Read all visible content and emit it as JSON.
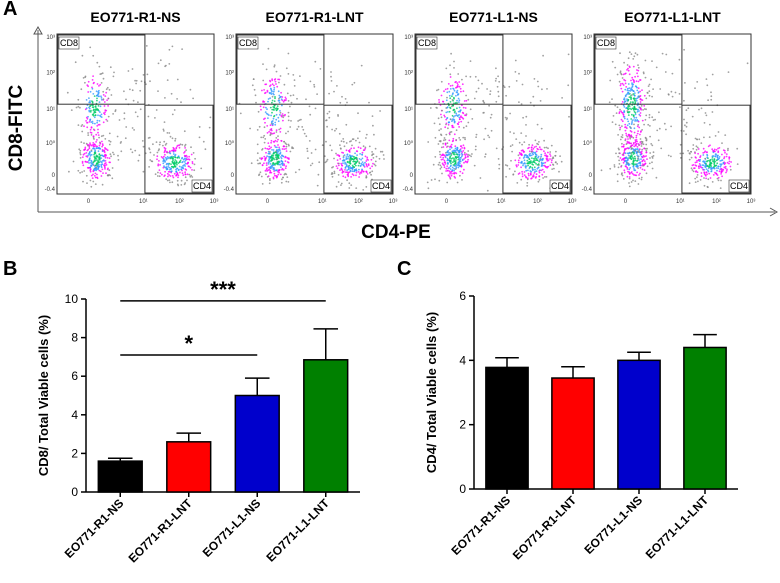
{
  "panels": {
    "a": "A",
    "b": "B",
    "c": "C"
  },
  "panel_a": {
    "ylabel": "CD8-FITC",
    "xlabel": "CD4-PE",
    "samples": [
      {
        "title": "EO771-R1-NS",
        "q_cd8": "CD8",
        "q_cd4": "CD4"
      },
      {
        "title": "EO771-R1-LNT",
        "q_cd8": "CD8",
        "q_cd4": "CD4"
      },
      {
        "title": "EO771-L1-NS",
        "q_cd8": "CD8",
        "q_cd4": "CD4"
      },
      {
        "title": "EO771-L1-LNT",
        "q_cd8": "CD8",
        "q_cd4": "CD4"
      }
    ],
    "y_ticks": [
      "10³",
      "10²",
      "10¹",
      "10⁰",
      "0",
      "-0.4"
    ],
    "x_ticks": [
      "0",
      "10¹",
      "10²",
      "10³"
    ]
  },
  "chart_data": [
    {
      "type": "bar",
      "title": "",
      "xlabel": "",
      "ylabel": "CD8/ Total Viable cells (%)",
      "categories": [
        "EO771-R1-NS",
        "EO771-R1-LNT",
        "EO771-L1-NS",
        "EO771-L1-LNT"
      ],
      "values": [
        1.6,
        2.6,
        5.0,
        6.85
      ],
      "errors": [
        0.15,
        0.45,
        0.9,
        1.6
      ],
      "colors": [
        "#000000",
        "#ff0000",
        "#0000cc",
        "#008000"
      ],
      "ylim": [
        0,
        10
      ],
      "yticks": [
        "0",
        "2",
        "4",
        "6",
        "8",
        "10"
      ],
      "annotations": [
        {
          "text": "*",
          "from": 0,
          "to": 2,
          "level": 7.1
        },
        {
          "text": "***",
          "from": 0,
          "to": 3,
          "level": 9.9
        }
      ]
    },
    {
      "type": "bar",
      "title": "",
      "xlabel": "",
      "ylabel": "CD4/ Total Viable cells (%)",
      "categories": [
        "EO771-R1-NS",
        "EO771-R1-LNT",
        "EO771-L1-NS",
        "EO771-L1-LNT"
      ],
      "values": [
        3.78,
        3.45,
        4.0,
        4.4
      ],
      "errors": [
        0.3,
        0.35,
        0.25,
        0.4
      ],
      "colors": [
        "#000000",
        "#ff0000",
        "#0000cc",
        "#008000"
      ],
      "ylim": [
        0,
        6
      ],
      "yticks": [
        "0",
        "2",
        "4",
        "6"
      ]
    }
  ]
}
